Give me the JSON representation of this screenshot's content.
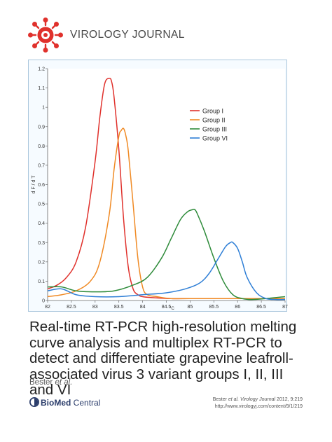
{
  "header": {
    "journal_name": "VIROLOGY JOURNAL",
    "brand_color": "#e0312c"
  },
  "chart_data": {
    "type": "line",
    "xlabel": "°C",
    "ylabel": "d F / d T",
    "xlim": [
      82,
      87
    ],
    "ylim": [
      0,
      1.2
    ],
    "x_ticks": [
      "82",
      "82.5",
      "83",
      "83.5",
      "84",
      "84.5",
      "85",
      "85.5",
      "86",
      "86.5",
      "87"
    ],
    "y_ticks": [
      "0",
      "0.1",
      "0.2",
      "0.3",
      "0.4",
      "0.5",
      "0.6",
      "0.7",
      "0.8",
      "0.9",
      "1",
      "1.1",
      "1.2"
    ],
    "legend_position": "top-right",
    "series": [
      {
        "name": "Group I",
        "color": "#e0312c",
        "x": [
          82.0,
          82.2,
          82.4,
          82.6,
          82.8,
          83.0,
          83.1,
          83.2,
          83.3,
          83.35,
          83.4,
          83.5,
          83.6,
          83.7,
          83.8,
          83.9,
          84.0,
          84.2,
          84.6,
          85.0,
          85.6,
          86.2,
          87.0
        ],
        "values": [
          0.06,
          0.08,
          0.12,
          0.2,
          0.38,
          0.72,
          0.95,
          1.12,
          1.15,
          1.13,
          1.05,
          0.78,
          0.42,
          0.17,
          0.06,
          0.03,
          0.02,
          0.015,
          0.01,
          0.01,
          0.01,
          0.01,
          0.01
        ]
      },
      {
        "name": "Group II",
        "color": "#f08a24",
        "x": [
          82.0,
          82.3,
          82.6,
          82.9,
          83.1,
          83.3,
          83.4,
          83.5,
          83.55,
          83.6,
          83.65,
          83.7,
          83.8,
          83.9,
          84.0,
          84.1,
          84.3,
          84.6,
          85.0,
          85.5,
          86.0,
          86.5,
          87.0
        ],
        "values": [
          0.02,
          0.03,
          0.05,
          0.1,
          0.2,
          0.45,
          0.68,
          0.85,
          0.88,
          0.89,
          0.85,
          0.77,
          0.5,
          0.22,
          0.07,
          0.03,
          0.02,
          0.01,
          0.01,
          0.01,
          0.01,
          0.01,
          0.01
        ]
      },
      {
        "name": "Group III",
        "color": "#2e8b3a",
        "x": [
          82.0,
          82.3,
          82.6,
          83.0,
          83.4,
          83.8,
          84.1,
          84.4,
          84.6,
          84.8,
          84.95,
          85.05,
          85.1,
          85.15,
          85.3,
          85.5,
          85.7,
          85.9,
          86.1,
          86.3,
          86.6,
          87.0
        ],
        "values": [
          0.07,
          0.07,
          0.05,
          0.045,
          0.05,
          0.08,
          0.12,
          0.22,
          0.32,
          0.42,
          0.46,
          0.47,
          0.47,
          0.45,
          0.36,
          0.22,
          0.1,
          0.03,
          0.01,
          0.005,
          0.01,
          0.02
        ]
      },
      {
        "name": "Group VI",
        "color": "#2f7fd6",
        "x": [
          82.0,
          82.3,
          82.6,
          83.0,
          83.5,
          84.0,
          84.5,
          84.9,
          85.2,
          85.4,
          85.6,
          85.75,
          85.85,
          85.9,
          86.0,
          86.1,
          86.2,
          86.4,
          86.6,
          86.8,
          87.0
        ],
        "values": [
          0.05,
          0.06,
          0.03,
          0.02,
          0.02,
          0.03,
          0.04,
          0.06,
          0.09,
          0.14,
          0.22,
          0.28,
          0.3,
          0.3,
          0.27,
          0.2,
          0.12,
          0.04,
          0.01,
          0.005,
          0.005
        ]
      }
    ]
  },
  "paper": {
    "title": "Real-time RT-PCR high-resolution melting curve analysis and multiplex RT-PCR to detect and differentiate grapevine leafroll-associated virus 3 variant groups I, II, III and VI",
    "authors_name": "Bester",
    "authors_suffix": "et al."
  },
  "footer": {
    "publisher_bold": "BioMed",
    "publisher_light": " Central",
    "citation_authors": "Bester",
    "citation_journal": "et al. Virology Journal",
    "citation_details": "2012, 9:219",
    "citation_url": "http://www.virologyj.com/content/9/1/219"
  }
}
